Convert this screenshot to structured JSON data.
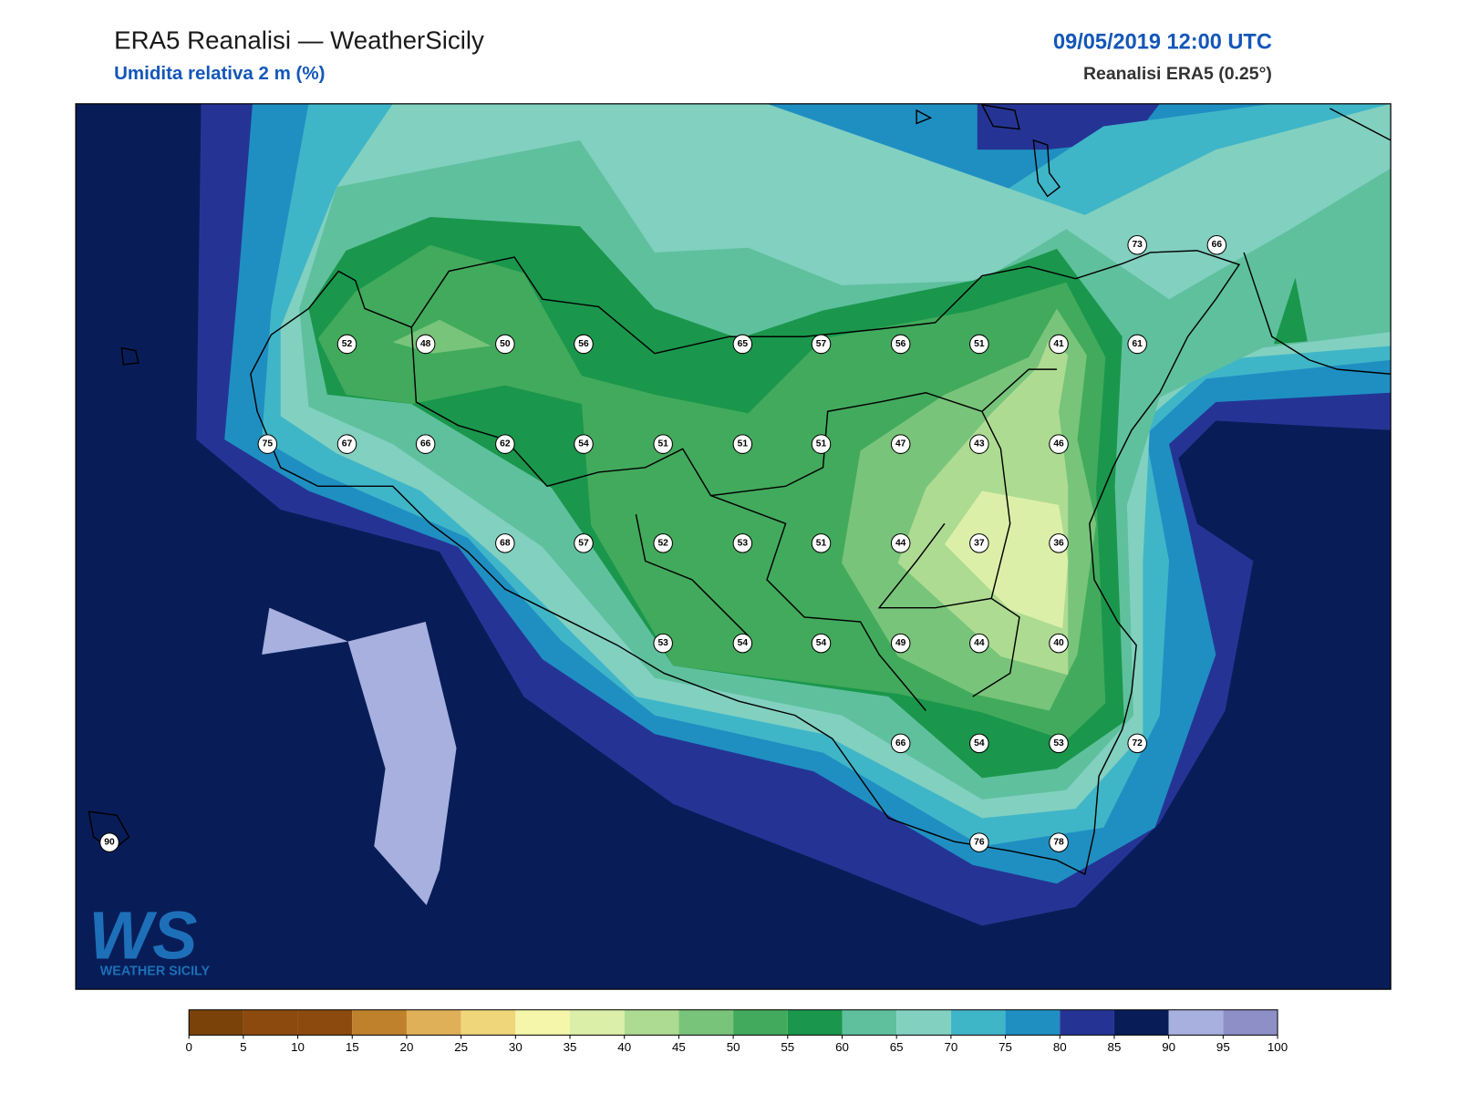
{
  "header": {
    "title": "ERA5 Reanalisi — WeatherSicily",
    "subtitle": "Umidita relativa 2 m (%)",
    "date": "09/05/2019 12:00 UTC",
    "source": "Reanalisi ERA5 (0.25°)"
  },
  "stations": [
    73,
    66,
    52,
    48,
    50,
    56,
    65,
    57,
    56,
    51,
    41,
    61,
    75,
    67,
    66,
    62,
    54,
    51,
    51,
    51,
    47,
    43,
    46,
    68,
    57,
    52,
    53,
    51,
    44,
    37,
    36,
    53,
    54,
    54,
    49,
    44,
    40,
    66,
    54,
    53,
    72,
    90,
    76,
    78
  ],
  "colorbar": {
    "ticks": [
      0,
      5,
      10,
      15,
      20,
      25,
      30,
      35,
      40,
      45,
      50,
      55,
      60,
      65,
      70,
      75,
      80,
      85,
      90,
      95,
      100
    ],
    "colors": [
      "#7a4208",
      "#8c4a0e",
      "#8c4a0e",
      "#c0812d",
      "#e0b058",
      "#f0d67a",
      "#f6f6aa",
      "#dcefa8",
      "#aedb92",
      "#78c47a",
      "#42aa5c",
      "#1a974c",
      "#5fc09e",
      "#82d0c0",
      "#3fb6c8",
      "#1f8fc2",
      "#253494",
      "#081d58",
      "#a7b0de",
      "#8f8fc8"
    ]
  },
  "logo": {
    "mark": "WS",
    "text": "WEATHER SICILY"
  }
}
